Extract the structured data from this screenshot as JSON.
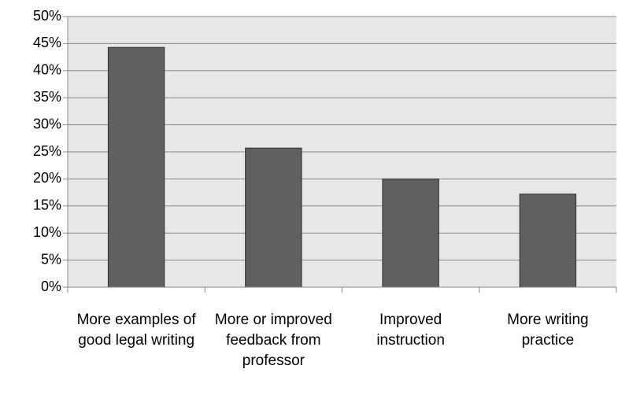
{
  "chart_data": {
    "type": "bar",
    "categories": [
      "More examples of good legal writing",
      "More or improved feedback from professor",
      "Improved instruction",
      "More writing practice"
    ],
    "values": [
      44.3,
      25.7,
      20,
      17.2
    ],
    "color": "#606060",
    "ylim": [
      0,
      50
    ],
    "yticks": [
      {
        "value": 0,
        "label": "0%"
      },
      {
        "value": 5,
        "label": "5%"
      },
      {
        "value": 10,
        "label": "10%"
      },
      {
        "value": 15,
        "label": "15%"
      },
      {
        "value": 20,
        "label": "20%"
      },
      {
        "value": 25,
        "label": "25%"
      },
      {
        "value": 30,
        "label": "30%"
      },
      {
        "value": 35,
        "label": "35%"
      },
      {
        "value": 40,
        "label": "40%"
      },
      {
        "value": 45,
        "label": "45%"
      },
      {
        "value": 50,
        "label": "50%"
      }
    ],
    "grid": true
  }
}
